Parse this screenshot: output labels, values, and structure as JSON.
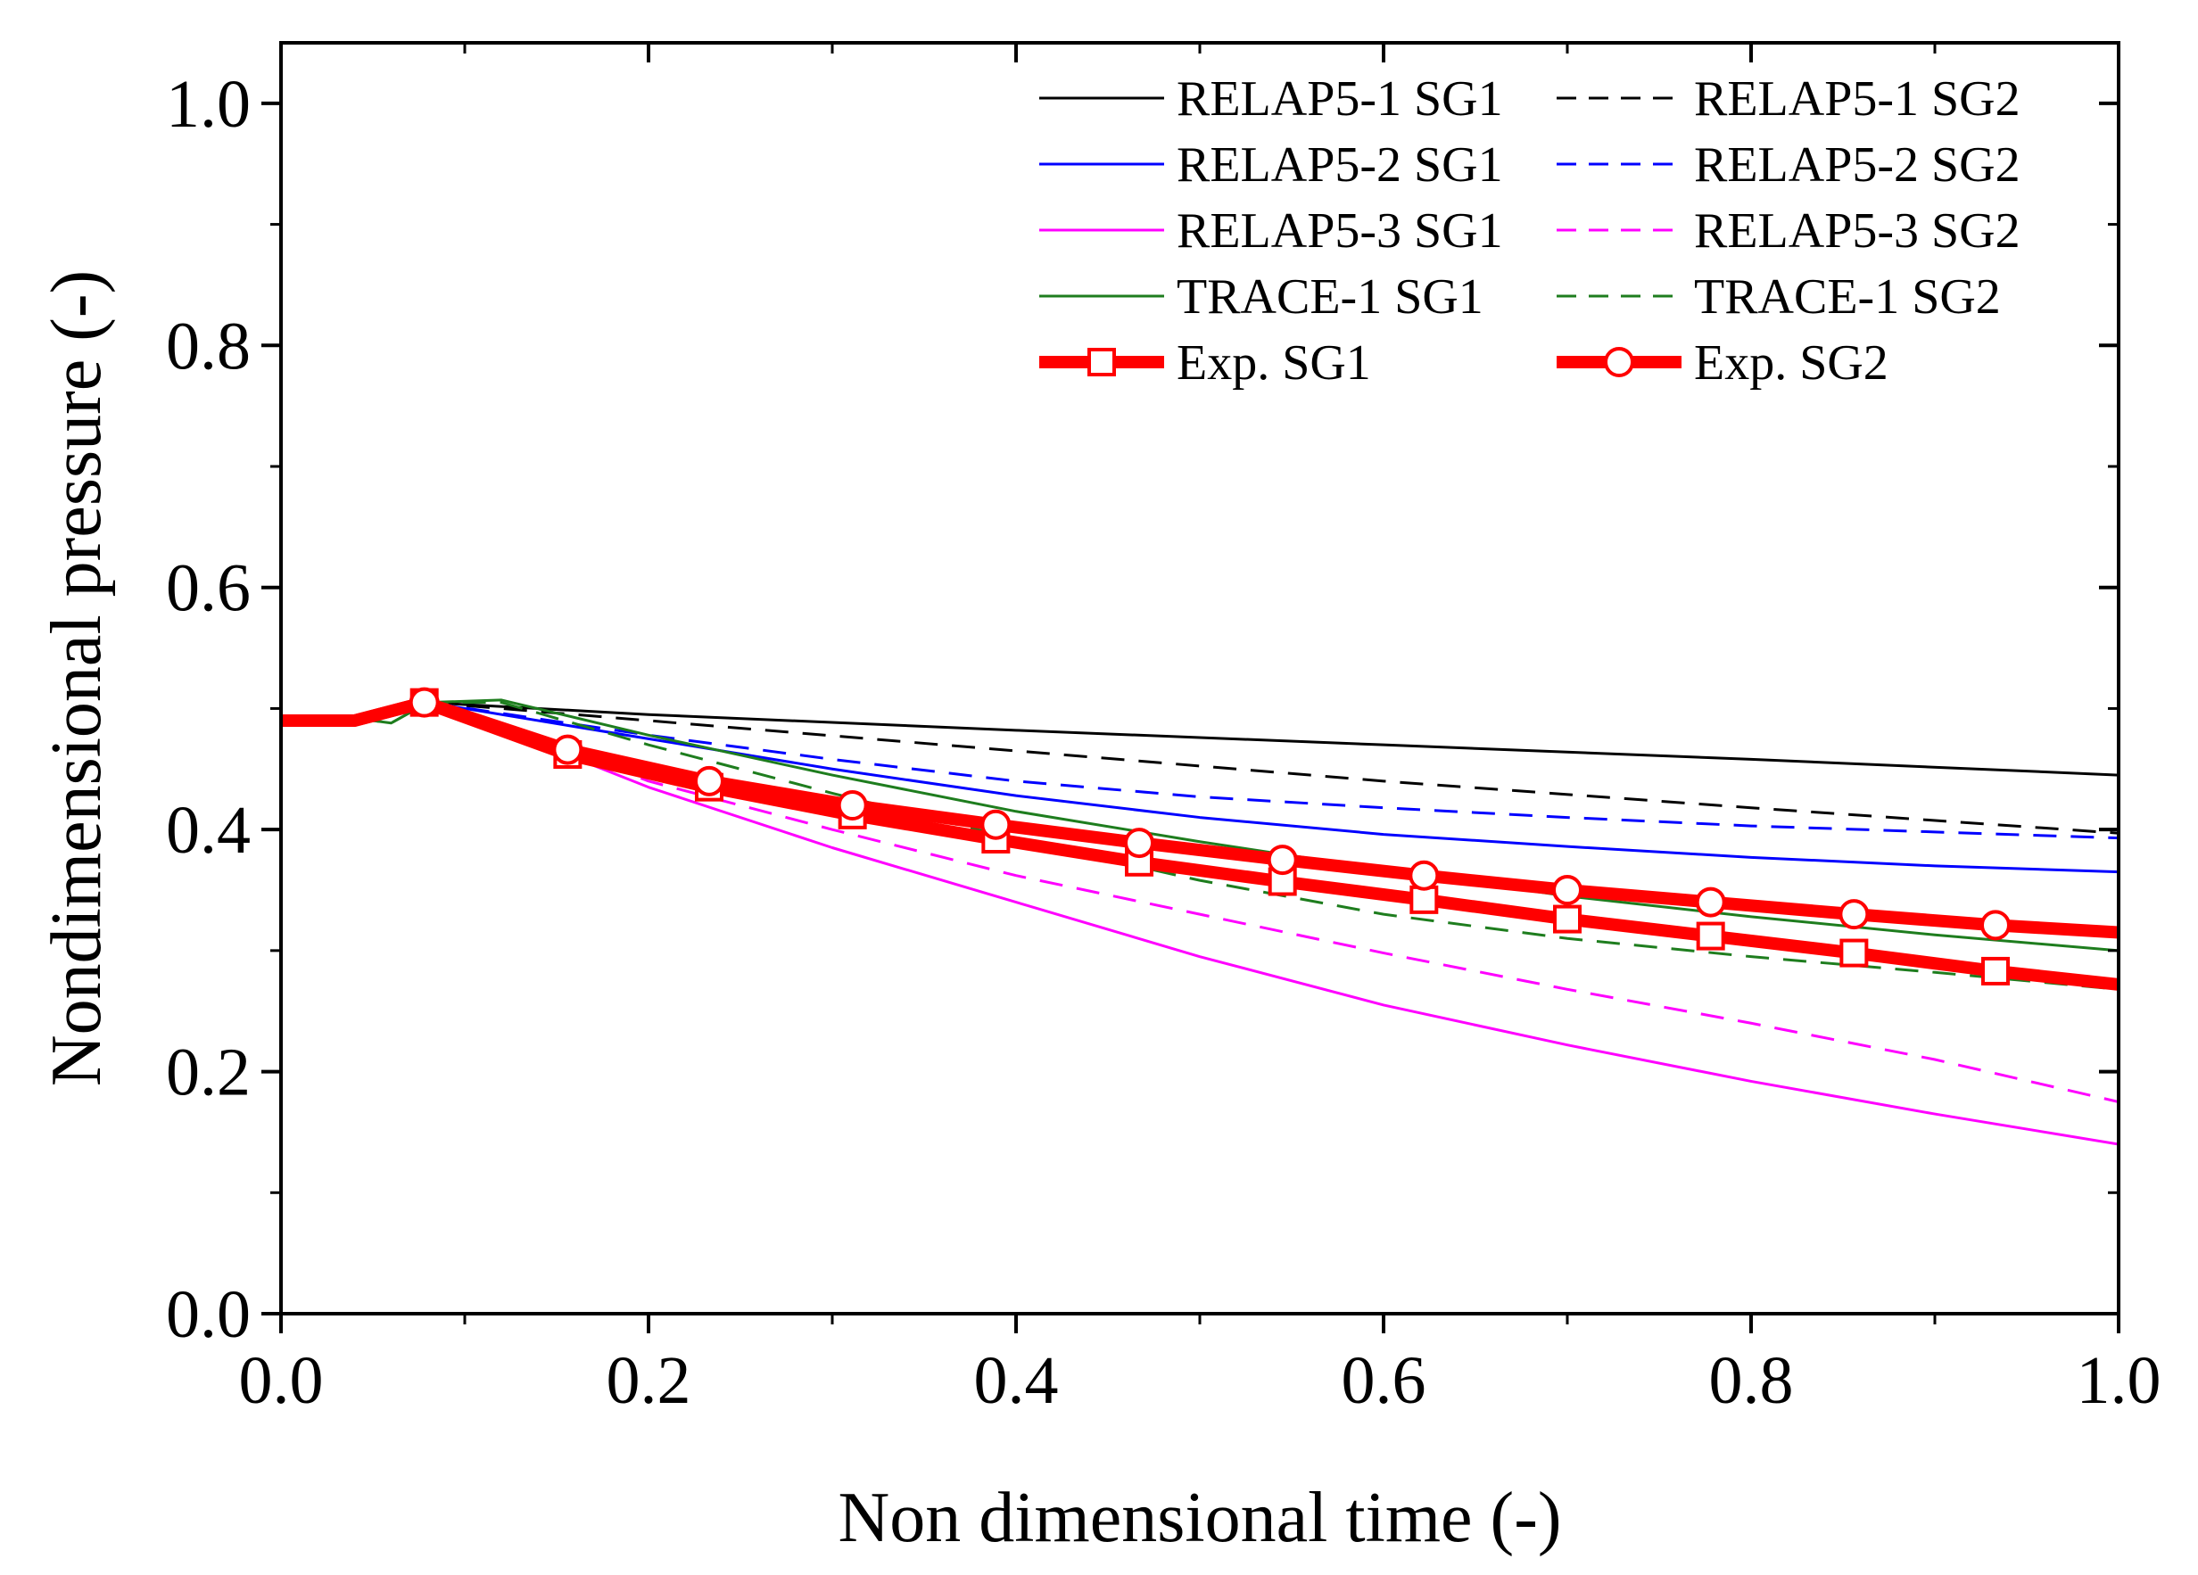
{
  "chart_data": {
    "type": "line",
    "title": "",
    "xlabel": "Non dimensional time (-)",
    "ylabel": "Nondimensional pressure (-)",
    "xlim": [
      0.0,
      1.0
    ],
    "ylim": [
      0.0,
      1.05
    ],
    "x_ticks": [
      "0.0",
      "0.2",
      "0.4",
      "0.6",
      "0.8",
      "1.0"
    ],
    "x_tick_values": [
      0.0,
      0.2,
      0.4,
      0.6,
      0.8,
      1.0
    ],
    "y_ticks": [
      "0.0",
      "0.2",
      "0.4",
      "0.6",
      "0.8",
      "1.0"
    ],
    "y_tick_values": [
      0.0,
      0.2,
      0.4,
      0.6,
      0.8,
      1.0
    ],
    "grid": false,
    "legend_position": "top-right",
    "series": [
      {
        "name": "RELAP5-1 SG1",
        "color": "#000000",
        "dash": "solid",
        "width": 3,
        "marker": "none",
        "x": [
          0,
          0.04,
          0.08,
          0.2,
          0.4,
          0.6,
          0.8,
          1.0
        ],
        "y": [
          0.49,
          0.492,
          0.505,
          0.495,
          0.482,
          0.47,
          0.458,
          0.445
        ]
      },
      {
        "name": "RELAP5-1 SG2",
        "color": "#000000",
        "dash": "dashed",
        "width": 3,
        "marker": "none",
        "x": [
          0,
          0.04,
          0.08,
          0.2,
          0.4,
          0.6,
          0.8,
          1.0
        ],
        "y": [
          0.49,
          0.492,
          0.505,
          0.49,
          0.465,
          0.44,
          0.418,
          0.397
        ]
      },
      {
        "name": "RELAP5-2 SG1",
        "color": "#0000ff",
        "dash": "solid",
        "width": 3,
        "marker": "none",
        "x": [
          0,
          0.04,
          0.08,
          0.2,
          0.3,
          0.4,
          0.5,
          0.6,
          0.7,
          0.8,
          0.9,
          1.0
        ],
        "y": [
          0.49,
          0.492,
          0.505,
          0.475,
          0.45,
          0.428,
          0.41,
          0.396,
          0.386,
          0.377,
          0.37,
          0.365
        ]
      },
      {
        "name": "RELAP5-2 SG2",
        "color": "#0000ff",
        "dash": "dashed",
        "width": 3,
        "marker": "none",
        "x": [
          0,
          0.04,
          0.08,
          0.2,
          0.3,
          0.4,
          0.5,
          0.6,
          0.7,
          0.8,
          0.9,
          1.0
        ],
        "y": [
          0.49,
          0.492,
          0.505,
          0.478,
          0.458,
          0.44,
          0.427,
          0.418,
          0.41,
          0.403,
          0.398,
          0.393
        ]
      },
      {
        "name": "RELAP5-3 SG1",
        "color": "#ff00ff",
        "dash": "solid",
        "width": 3,
        "marker": "none",
        "x": [
          0,
          0.04,
          0.08,
          0.15,
          0.2,
          0.3,
          0.4,
          0.5,
          0.6,
          0.7,
          0.8,
          0.9,
          1.0
        ],
        "y": [
          0.49,
          0.492,
          0.505,
          0.465,
          0.435,
          0.385,
          0.34,
          0.295,
          0.255,
          0.222,
          0.192,
          0.165,
          0.14
        ]
      },
      {
        "name": "RELAP5-3 SG2",
        "color": "#ff00ff",
        "dash": "dashed",
        "width": 3,
        "marker": "none",
        "x": [
          0,
          0.04,
          0.08,
          0.15,
          0.2,
          0.3,
          0.4,
          0.5,
          0.6,
          0.7,
          0.8,
          0.9,
          1.0
        ],
        "y": [
          0.49,
          0.492,
          0.505,
          0.47,
          0.44,
          0.4,
          0.362,
          0.33,
          0.298,
          0.268,
          0.24,
          0.21,
          0.175
        ]
      },
      {
        "name": "TRACE-1 SG1",
        "color": "#1e7d1e",
        "dash": "solid",
        "width": 3,
        "marker": "none",
        "x": [
          0,
          0.04,
          0.06,
          0.08,
          0.12,
          0.2,
          0.3,
          0.4,
          0.5,
          0.6,
          0.7,
          0.8,
          0.9,
          1.0
        ],
        "y": [
          0.49,
          0.492,
          0.488,
          0.505,
          0.507,
          0.478,
          0.445,
          0.415,
          0.39,
          0.367,
          0.345,
          0.328,
          0.313,
          0.3
        ]
      },
      {
        "name": "TRACE-1 SG2",
        "color": "#1e7d1e",
        "dash": "dashed",
        "width": 3,
        "marker": "none",
        "x": [
          0,
          0.04,
          0.06,
          0.08,
          0.12,
          0.2,
          0.3,
          0.4,
          0.5,
          0.6,
          0.7,
          0.8,
          0.9,
          1.0
        ],
        "y": [
          0.49,
          0.492,
          0.488,
          0.505,
          0.505,
          0.47,
          0.43,
          0.392,
          0.358,
          0.33,
          0.31,
          0.295,
          0.282,
          0.268
        ]
      },
      {
        "name": "Exp. SG1",
        "color": "#ff0000",
        "dash": "solid",
        "width": 14,
        "marker": "square",
        "x": [
          0,
          0.04,
          0.078,
          0.156,
          0.233,
          0.311,
          0.389,
          0.467,
          0.545,
          0.622,
          0.7,
          0.778,
          0.856,
          0.933,
          1.0
        ],
        "y": [
          0.49,
          0.49,
          0.505,
          0.462,
          0.435,
          0.412,
          0.392,
          0.373,
          0.357,
          0.342,
          0.326,
          0.312,
          0.298,
          0.283,
          0.272
        ]
      },
      {
        "name": "Exp. SG2",
        "color": "#ff0000",
        "dash": "solid",
        "width": 14,
        "marker": "circle",
        "x": [
          0,
          0.04,
          0.078,
          0.156,
          0.233,
          0.311,
          0.389,
          0.467,
          0.545,
          0.622,
          0.7,
          0.778,
          0.856,
          0.933,
          1.0
        ],
        "y": [
          0.49,
          0.49,
          0.505,
          0.466,
          0.44,
          0.42,
          0.404,
          0.389,
          0.375,
          0.362,
          0.35,
          0.34,
          0.33,
          0.321,
          0.315
        ]
      }
    ],
    "marker_x": [
      0.078,
      0.156,
      0.233,
      0.311,
      0.389,
      0.467,
      0.545,
      0.622,
      0.7,
      0.778,
      0.856,
      0.933
    ]
  }
}
